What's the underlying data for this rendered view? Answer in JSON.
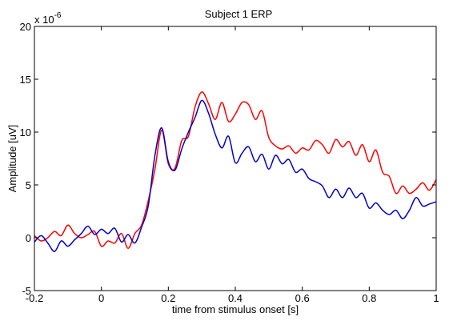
{
  "chart_data": {
    "type": "line",
    "title": "Subject 1 ERP",
    "xlabel": "time from stimulus onset [s]",
    "ylabel": "Amplitude [uV]",
    "y_multiplier_base": "x 10",
    "y_multiplier_exp": "-6",
    "xlim": [
      -0.2,
      1
    ],
    "ylim": [
      -5,
      20
    ],
    "xticks": [
      -0.2,
      0,
      0.2,
      0.4,
      0.6,
      0.8,
      1
    ],
    "xtick_labels": [
      "-0.2",
      "0",
      "0.2",
      "0.4",
      "0.6",
      "0.8",
      "1"
    ],
    "yticks": [
      -5,
      0,
      5,
      10,
      15,
      20
    ],
    "ytick_labels": [
      "-5",
      "0",
      "5",
      "10",
      "15",
      "20"
    ],
    "grid": false,
    "legend": false,
    "series": [
      {
        "color": "#ff0000",
        "x": [
          -0.2,
          -0.18,
          -0.16,
          -0.14,
          -0.12,
          -0.1,
          -0.08,
          -0.06,
          -0.04,
          -0.02,
          0,
          0.02,
          0.04,
          0.06,
          0.08,
          0.1,
          0.12,
          0.14,
          0.16,
          0.18,
          0.2,
          0.22,
          0.24,
          0.26,
          0.28,
          0.3,
          0.32,
          0.34,
          0.36,
          0.38,
          0.4,
          0.42,
          0.44,
          0.46,
          0.48,
          0.5,
          0.52,
          0.54,
          0.56,
          0.58,
          0.6,
          0.62,
          0.64,
          0.66,
          0.68,
          0.7,
          0.72,
          0.74,
          0.76,
          0.78,
          0.8,
          0.82,
          0.84,
          0.86,
          0.88,
          0.9,
          0.92,
          0.94,
          0.96,
          0.98,
          1
        ],
        "y": [
          0.2,
          -0.3,
          0,
          0.6,
          0.2,
          1.2,
          0.4,
          0,
          0.3,
          0.6,
          -0.8,
          -0.3,
          -0.5,
          0.4,
          -1.0,
          0.4,
          1.2,
          3.5,
          6.5,
          10.2,
          7.0,
          6.6,
          9.2,
          9.6,
          12.4,
          13.8,
          12.7,
          11.2,
          12.8,
          11.0,
          11.7,
          12.8,
          12.6,
          11.2,
          12.0,
          9.5,
          8.7,
          8.4,
          8.7,
          8.0,
          8.5,
          8.3,
          9.2,
          8.8,
          8.0,
          9.3,
          8.6,
          9.1,
          7.8,
          8.8,
          7.2,
          8.3,
          6.2,
          5.8,
          4.2,
          4.9,
          4.2,
          4.6,
          5.2,
          4.5,
          5.5
        ]
      },
      {
        "color": "#0000cc",
        "x": [
          -0.2,
          -0.18,
          -0.16,
          -0.14,
          -0.12,
          -0.1,
          -0.08,
          -0.06,
          -0.04,
          -0.02,
          0,
          0.02,
          0.04,
          0.06,
          0.08,
          0.1,
          0.12,
          0.14,
          0.16,
          0.18,
          0.2,
          0.22,
          0.24,
          0.26,
          0.28,
          0.3,
          0.32,
          0.34,
          0.36,
          0.38,
          0.4,
          0.42,
          0.44,
          0.46,
          0.48,
          0.5,
          0.52,
          0.54,
          0.56,
          0.58,
          0.6,
          0.62,
          0.64,
          0.66,
          0.68,
          0.7,
          0.72,
          0.74,
          0.76,
          0.78,
          0.8,
          0.82,
          0.84,
          0.86,
          0.88,
          0.9,
          0.92,
          0.94,
          0.96,
          0.98,
          1
        ],
        "y": [
          -0.4,
          0.2,
          -0.5,
          -1.3,
          -0.3,
          -0.8,
          -0.2,
          0.4,
          1.1,
          0.3,
          0.8,
          0.4,
          0.9,
          -0.4,
          0.3,
          -0.5,
          1.0,
          3.0,
          7.8,
          10.4,
          7.2,
          6.4,
          8.4,
          10.0,
          11.4,
          13.0,
          11.8,
          9.8,
          8.5,
          9.6,
          7.1,
          8.0,
          8.6,
          7.2,
          7.9,
          6.5,
          7.8,
          7.0,
          7.4,
          6.2,
          6.5,
          5.6,
          5.3,
          4.9,
          3.8,
          4.6,
          3.8,
          4.7,
          3.8,
          4.2,
          2.8,
          3.3,
          2.6,
          2.2,
          2.6,
          1.8,
          2.6,
          3.8,
          3.0,
          3.2,
          3.4
        ]
      }
    ]
  }
}
